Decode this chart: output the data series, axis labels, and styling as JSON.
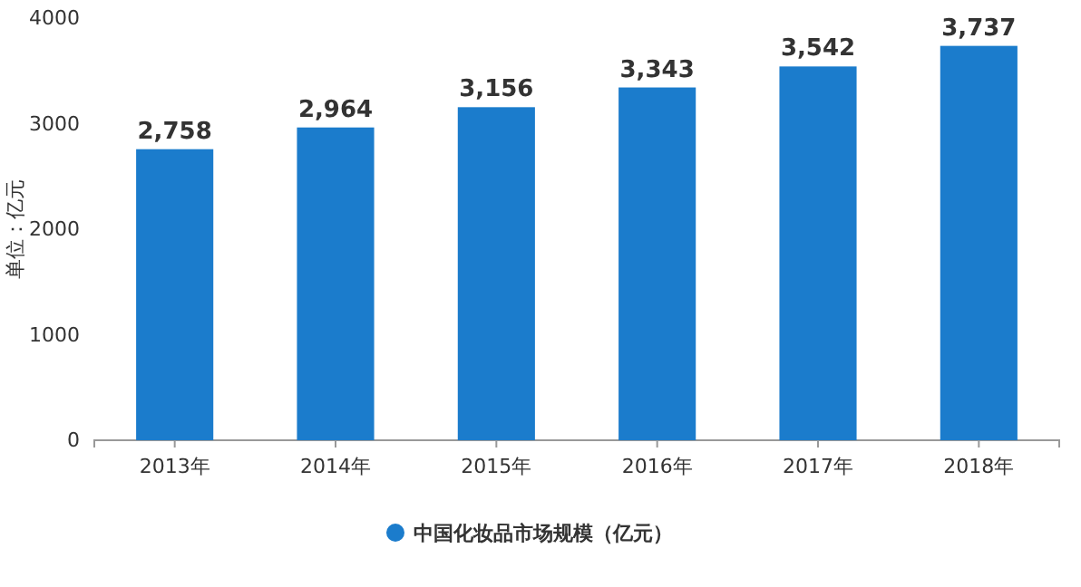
{
  "chart_data": {
    "type": "bar",
    "ylabel": "单位：亿元",
    "categories": [
      "2013年",
      "2014年",
      "2015年",
      "2016年",
      "2017年",
      "2018年"
    ],
    "series": [
      {
        "name": "中国化妆品市场规模（亿元）",
        "color": "#1b7ccc",
        "values": [
          2758,
          2964,
          3156,
          3343,
          3542,
          3737
        ],
        "value_labels": [
          "2,758",
          "2,964",
          "3,156",
          "3,343",
          "3,542",
          "3,737"
        ]
      }
    ],
    "ylim": [
      0,
      4000
    ],
    "yticks": [
      0,
      1000,
      2000,
      3000,
      4000
    ],
    "legend": "bottom"
  }
}
